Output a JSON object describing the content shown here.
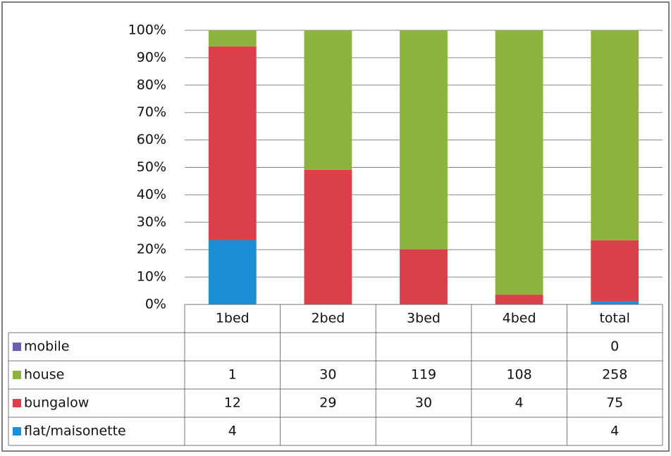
{
  "chart_data": {
    "type": "bar",
    "stacking": "percent",
    "categories": [
      "1bed",
      "2bed",
      "3bed",
      "4bed",
      "total"
    ],
    "series": [
      {
        "name": "mobile",
        "color": "#6b5fb0",
        "values": [
          null,
          null,
          null,
          null,
          0
        ]
      },
      {
        "name": "house",
        "color": "#8db33f",
        "values": [
          1,
          30,
          119,
          108,
          258
        ]
      },
      {
        "name": "bungalow",
        "color": "#d9404a",
        "values": [
          12,
          29,
          30,
          4,
          75
        ]
      },
      {
        "name": "flat/maisonette",
        "color": "#1b8fd6",
        "values": [
          4,
          null,
          null,
          null,
          4
        ]
      }
    ],
    "ylim": [
      0,
      100
    ],
    "yticks": [
      {
        "value": 0,
        "label": "0%"
      },
      {
        "value": 10,
        "label": "10%"
      },
      {
        "value": 20,
        "label": "20%"
      },
      {
        "value": 30,
        "label": "30%"
      },
      {
        "value": 40,
        "label": "40%"
      },
      {
        "value": 50,
        "label": "50%"
      },
      {
        "value": 60,
        "label": "60%"
      },
      {
        "value": 70,
        "label": "70%"
      },
      {
        "value": 80,
        "label": "80%"
      },
      {
        "value": 90,
        "label": "90%"
      },
      {
        "value": 100,
        "label": "100%"
      }
    ],
    "grid": true,
    "legend": "table"
  }
}
